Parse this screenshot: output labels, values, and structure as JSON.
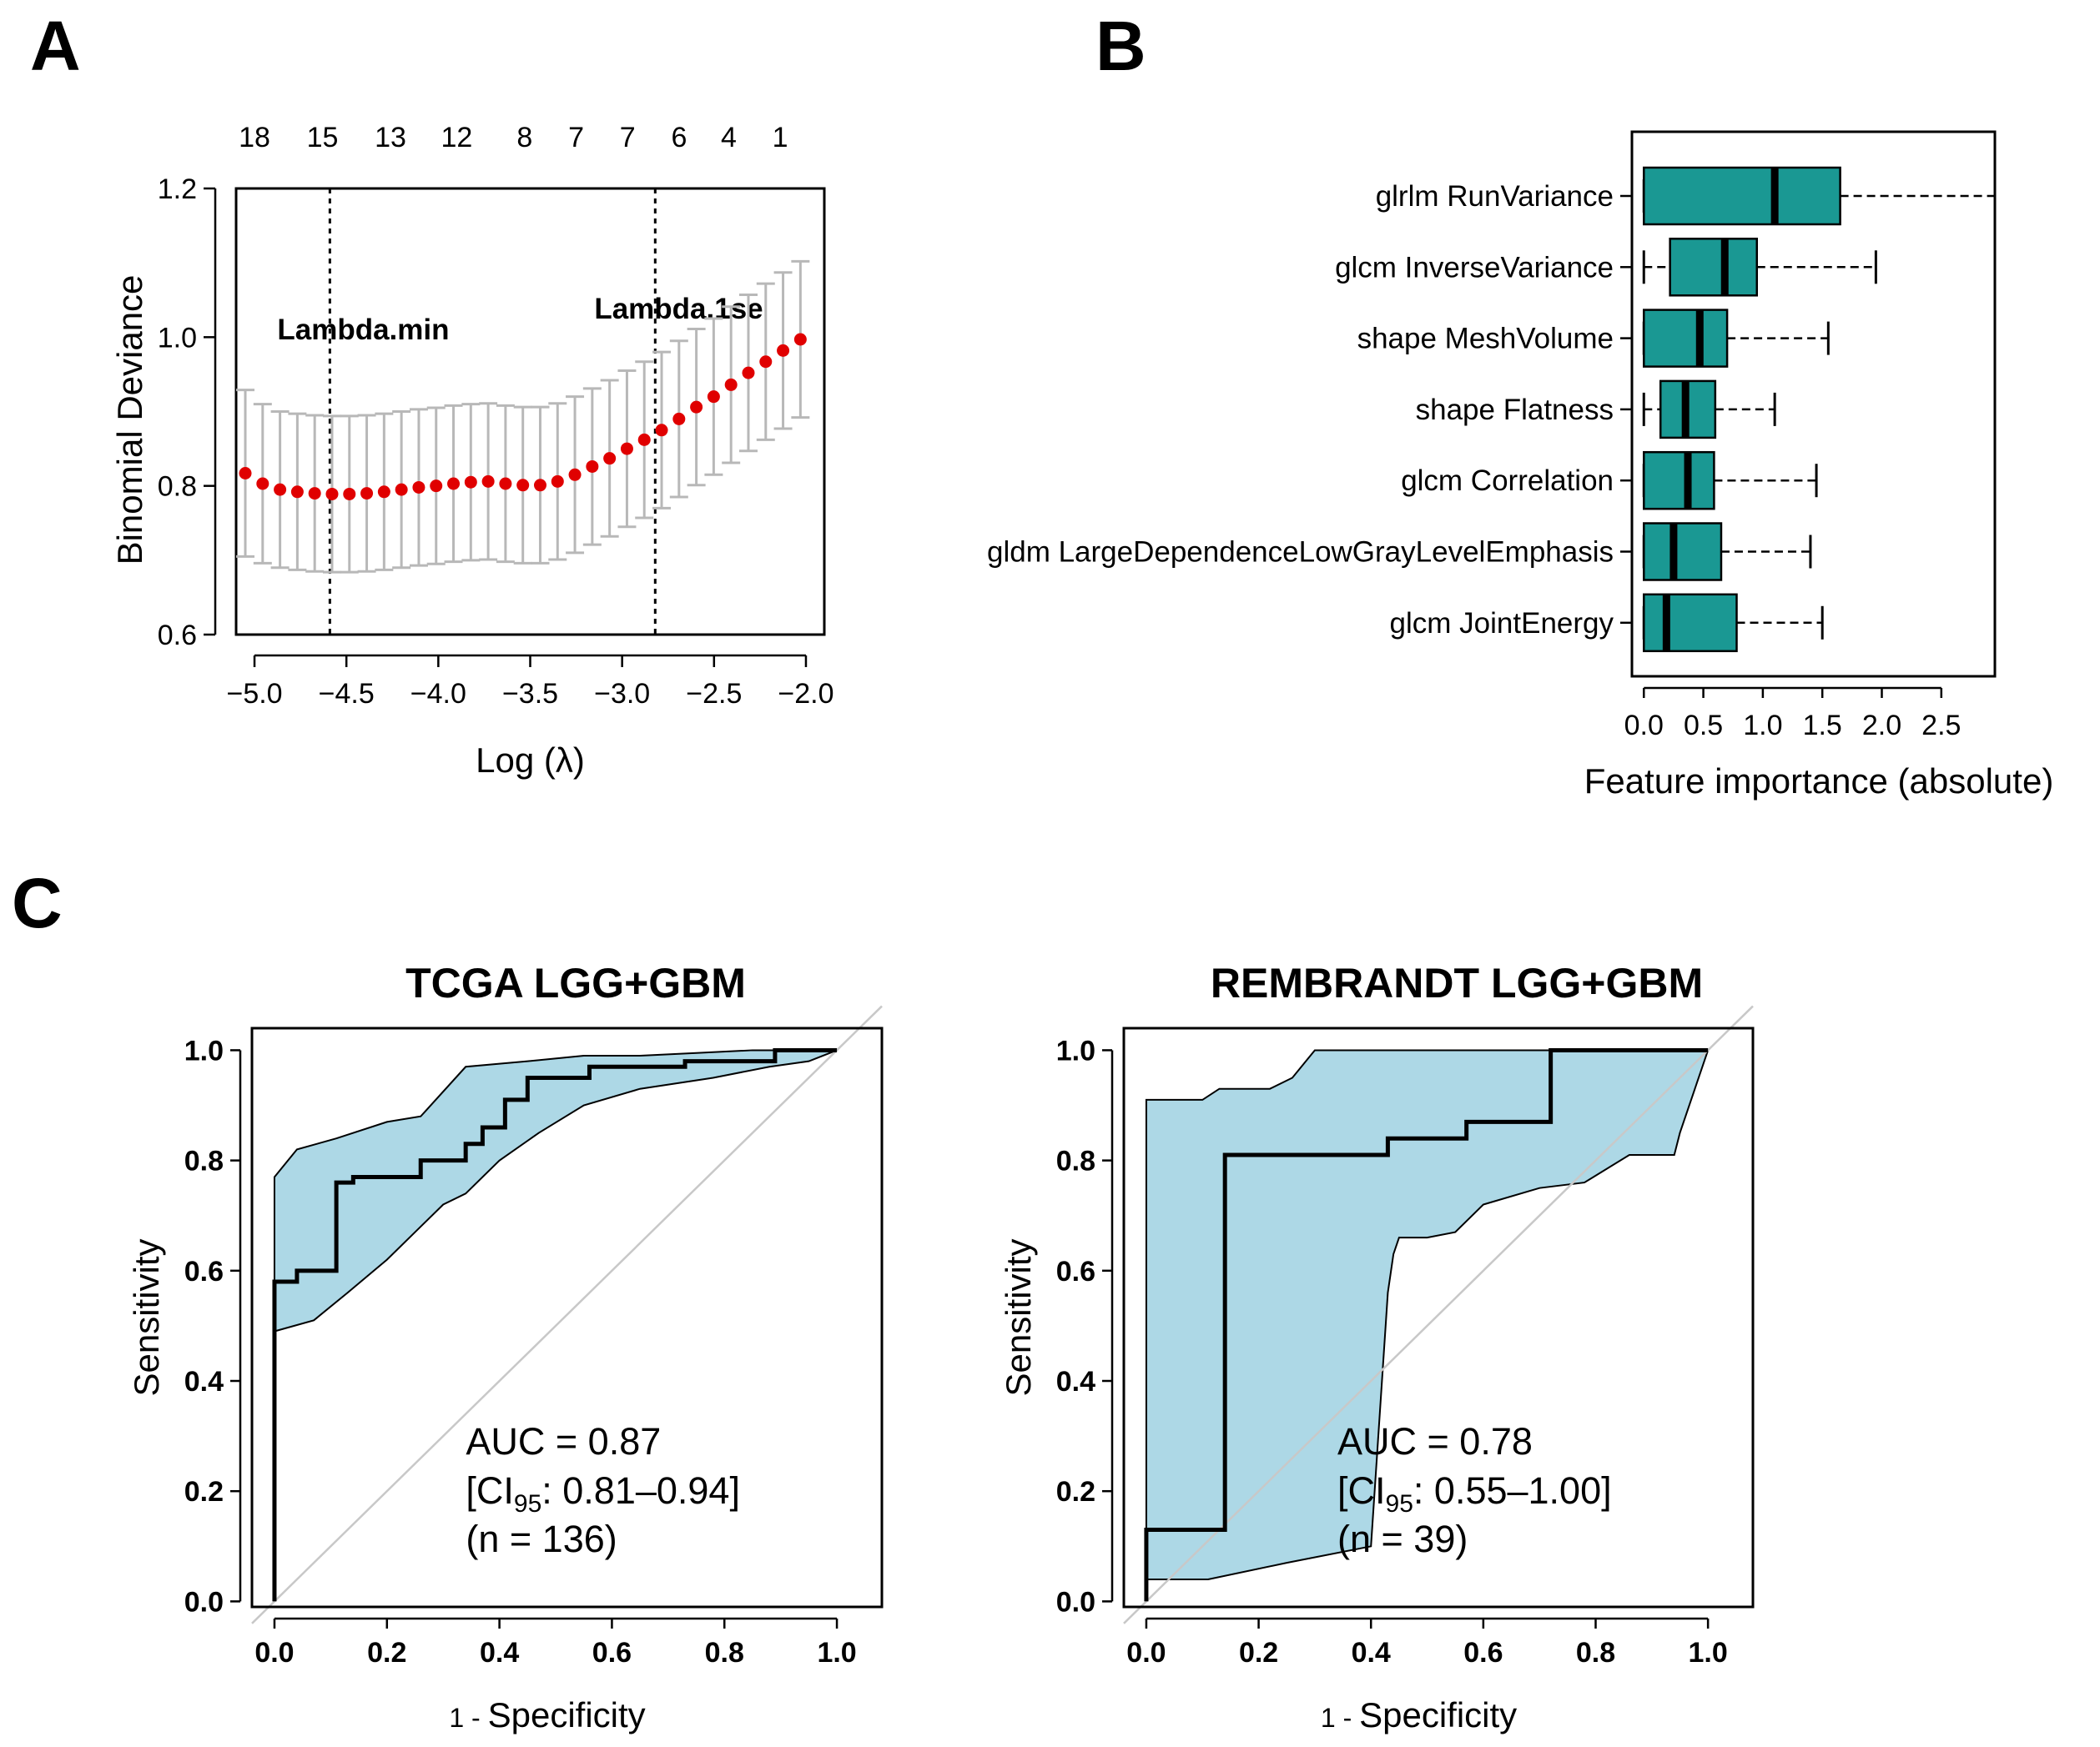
{
  "panels": {
    "A": {
      "letter": "A"
    },
    "B": {
      "letter": "B"
    },
    "C": {
      "letter": "C"
    }
  },
  "chart_data": [
    {
      "id": "A",
      "type": "scatter",
      "title": "",
      "xlabel": "Log (λ)",
      "ylabel": "Binomial Deviance",
      "xlim": [
        -5.1,
        -1.9
      ],
      "ylim": [
        0.6,
        1.2
      ],
      "xticks": [
        -5.0,
        -4.5,
        -4.0,
        -3.5,
        -3.0,
        -2.5,
        -2.0
      ],
      "xtick_labels": [
        "−5.0",
        "−4.5",
        "−4.0",
        "−3.5",
        "−3.0",
        "−2.5",
        "−2.0"
      ],
      "yticks": [
        0.6,
        0.8,
        1.0,
        1.2
      ],
      "ytick_labels": [
        "0.6",
        "0.8",
        "1.0",
        "1.2"
      ],
      "top_axis": {
        "labels": [
          "18",
          "15",
          "13",
          "12",
          "8",
          "7",
          "7",
          "6",
          "4",
          "1"
        ],
        "x": [
          -5.0,
          -4.63,
          -4.26,
          -3.9,
          -3.53,
          -3.25,
          -2.97,
          -2.69,
          -2.42,
          -2.14
        ]
      },
      "vlines": [
        {
          "x": -4.59,
          "label": "Lambda.min"
        },
        {
          "x": -2.82,
          "label": "Lambda.1se"
        }
      ],
      "x": [
        -5.05,
        -4.9556,
        -4.8612,
        -4.7669,
        -4.6725,
        -4.5781,
        -4.4837,
        -4.3894,
        -4.295,
        -4.2006,
        -4.1062,
        -4.0119,
        -3.9175,
        -3.8231,
        -3.7287,
        -3.6344,
        -3.54,
        -3.4456,
        -3.3512,
        -3.2569,
        -3.1625,
        -3.0681,
        -2.9737,
        -2.8794,
        -2.785,
        -2.6906,
        -2.5962,
        -2.5019,
        -2.4075,
        -2.3131,
        -2.2187,
        -2.1244,
        -2.03
      ],
      "y": [
        0.817,
        0.803,
        0.795,
        0.792,
        0.79,
        0.789,
        0.789,
        0.79,
        0.792,
        0.795,
        0.798,
        0.8,
        0.803,
        0.805,
        0.806,
        0.803,
        0.801,
        0.801,
        0.806,
        0.815,
        0.826,
        0.837,
        0.85,
        0.862,
        0.875,
        0.89,
        0.906,
        0.92,
        0.936,
        0.952,
        0.967,
        0.982,
        0.997
      ],
      "y_low": [
        0.705,
        0.696,
        0.69,
        0.687,
        0.685,
        0.684,
        0.684,
        0.685,
        0.687,
        0.69,
        0.693,
        0.695,
        0.698,
        0.7,
        0.701,
        0.698,
        0.696,
        0.696,
        0.701,
        0.71,
        0.721,
        0.732,
        0.745,
        0.757,
        0.77,
        0.785,
        0.801,
        0.815,
        0.831,
        0.847,
        0.862,
        0.877,
        0.892
      ],
      "y_high": [
        0.929,
        0.91,
        0.9,
        0.897,
        0.895,
        0.894,
        0.894,
        0.895,
        0.897,
        0.9,
        0.903,
        0.905,
        0.908,
        0.91,
        0.911,
        0.908,
        0.906,
        0.906,
        0.911,
        0.92,
        0.931,
        0.942,
        0.955,
        0.967,
        0.98,
        0.995,
        1.011,
        1.025,
        1.041,
        1.057,
        1.072,
        1.087,
        1.102
      ],
      "point_color": "#e00000",
      "errorbar_color": "#b8b8b8"
    },
    {
      "id": "B",
      "type": "box",
      "title": "",
      "xlabel": "Feature importance (absolute)",
      "xlim": [
        -0.1,
        2.95
      ],
      "xticks": [
        0.0,
        0.5,
        1.0,
        1.5,
        2.0,
        2.5
      ],
      "xtick_labels": [
        "0.0",
        "0.5",
        "1.0",
        "1.5",
        "2.0",
        "2.5"
      ],
      "box_color": "#1a9893",
      "categories": [
        "glrlm RunVariance",
        "glcm InverseVariance",
        "shape MeshVolume",
        "shape Flatness",
        "glcm Correlation",
        "gldm LargeDependenceLowGrayLevelEmphasis",
        "glcm JointEnergy"
      ],
      "boxes": [
        {
          "min": 0.0,
          "q1": 0.0,
          "median": 1.1,
          "q3": 1.65,
          "max": 2.95
        },
        {
          "min": 0.0,
          "q1": 0.22,
          "median": 0.68,
          "q3": 0.95,
          "max": 1.95
        },
        {
          "min": 0.0,
          "q1": 0.0,
          "median": 0.47,
          "q3": 0.7,
          "max": 1.55
        },
        {
          "min": 0.0,
          "q1": 0.14,
          "median": 0.35,
          "q3": 0.6,
          "max": 1.1
        },
        {
          "min": 0.0,
          "q1": 0.0,
          "median": 0.37,
          "q3": 0.59,
          "max": 1.45
        },
        {
          "min": 0.0,
          "q1": 0.0,
          "median": 0.25,
          "q3": 0.65,
          "max": 1.4
        },
        {
          "min": 0.0,
          "q1": 0.0,
          "median": 0.19,
          "q3": 0.78,
          "max": 1.5
        }
      ]
    },
    {
      "id": "C1",
      "type": "line",
      "title": "TCGA LGG+GBM",
      "xlabel_one": "1",
      "xlabel_rest": "Specificity",
      "ylabel": "Sensitivity",
      "xlim": [
        -0.04,
        1.08
      ],
      "ylim": [
        -0.01,
        1.04
      ],
      "xticks": [
        0.0,
        0.2,
        0.4,
        0.6,
        0.8,
        1.0
      ],
      "xtick_labels": [
        "0.0",
        "0.2",
        "0.4",
        "0.6",
        "0.8",
        "1.0"
      ],
      "yticks": [
        0.0,
        0.2,
        0.4,
        0.6,
        0.8,
        1.0
      ],
      "ytick_labels": [
        "0.0",
        "0.2",
        "0.4",
        "0.6",
        "0.8",
        "1.0"
      ],
      "auc_text": "AUC = 0.87",
      "ci_prefix": "[CI",
      "ci_sub": "95",
      "ci_rest": ": 0.81–0.94]",
      "n_text": "(n = 136)",
      "roc": {
        "x": [
          0,
          0,
          0.04,
          0.04,
          0.11,
          0.11,
          0.14,
          0.14,
          0.26,
          0.26,
          0.34,
          0.34,
          0.37,
          0.37,
          0.41,
          0.41,
          0.45,
          0.45,
          0.48,
          0.48,
          0.56,
          0.56,
          0.73,
          0.73,
          0.89,
          0.89,
          1.0
        ],
        "y": [
          0,
          0.58,
          0.58,
          0.6,
          0.6,
          0.76,
          0.76,
          0.77,
          0.77,
          0.8,
          0.8,
          0.83,
          0.83,
          0.86,
          0.86,
          0.91,
          0.91,
          0.95,
          0.95,
          0.95,
          0.95,
          0.97,
          0.97,
          0.98,
          0.98,
          1.0,
          1.0
        ]
      },
      "ci_band": {
        "upper_x": [
          0,
          0.04,
          0.11,
          0.2,
          0.26,
          0.34,
          0.45,
          0.55,
          0.65,
          0.75,
          0.85,
          0.95,
          1.0
        ],
        "upper_y": [
          0.77,
          0.82,
          0.84,
          0.87,
          0.88,
          0.97,
          0.98,
          0.99,
          0.99,
          0.995,
          1.0,
          1.0,
          1.0
        ],
        "lower_x": [
          1.0,
          0.95,
          0.88,
          0.78,
          0.65,
          0.55,
          0.47,
          0.4,
          0.34,
          0.3,
          0.2,
          0.13,
          0.07,
          0.0
        ],
        "lower_y": [
          1.0,
          0.98,
          0.97,
          0.95,
          0.93,
          0.9,
          0.85,
          0.8,
          0.74,
          0.72,
          0.62,
          0.56,
          0.51,
          0.49
        ]
      },
      "band_color": "#add8e6",
      "diagonal_color": "#c8c8c8"
    },
    {
      "id": "C2",
      "type": "line",
      "title": "REMBRANDT LGG+GBM",
      "xlabel_one": "1",
      "xlabel_rest": "Specificity",
      "ylabel": "Sensitivity",
      "xlim": [
        -0.04,
        1.08
      ],
      "ylim": [
        -0.01,
        1.04
      ],
      "xticks": [
        0.0,
        0.2,
        0.4,
        0.6,
        0.8,
        1.0
      ],
      "xtick_labels": [
        "0.0",
        "0.2",
        "0.4",
        "0.6",
        "0.8",
        "1.0"
      ],
      "yticks": [
        0.0,
        0.2,
        0.4,
        0.6,
        0.8,
        1.0
      ],
      "ytick_labels": [
        "0.0",
        "0.2",
        "0.4",
        "0.6",
        "0.8",
        "1.0"
      ],
      "auc_text": "AUC = 0.78",
      "ci_prefix": "[CI",
      "ci_sub": "95",
      "ci_rest": ": 0.55–1.00]",
      "n_text": "(n = 39)",
      "roc": {
        "x": [
          0,
          0,
          0.14,
          0.14,
          0.43,
          0.43,
          0.57,
          0.57,
          0.72,
          0.72,
          1.0
        ],
        "y": [
          0,
          0.13,
          0.13,
          0.81,
          0.81,
          0.84,
          0.84,
          0.87,
          0.87,
          1.0,
          1.0
        ]
      },
      "ci_band": {
        "upper_x": [
          0,
          0.1,
          0.13,
          0.22,
          0.26,
          0.3,
          0.5,
          0.7,
          1.0
        ],
        "upper_y": [
          0.91,
          0.91,
          0.93,
          0.93,
          0.95,
          1.0,
          1.0,
          1.0,
          1.0
        ],
        "lower_x": [
          1.0,
          0.95,
          0.94,
          0.86,
          0.78,
          0.7,
          0.6,
          0.55,
          0.5,
          0.45,
          0.44,
          0.43,
          0.4,
          0.25,
          0.11,
          0.0
        ],
        "lower_y": [
          1.0,
          0.85,
          0.81,
          0.81,
          0.76,
          0.75,
          0.72,
          0.67,
          0.66,
          0.66,
          0.63,
          0.56,
          0.1,
          0.07,
          0.04,
          0.04
        ]
      },
      "band_color": "#add8e6",
      "diagonal_color": "#c8c8c8"
    }
  ]
}
